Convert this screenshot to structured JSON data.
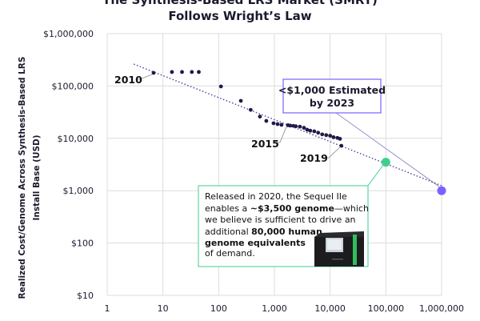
{
  "chart_data": {
    "type": "scatter",
    "title": [
      "The Synthesis-Based LRS Market (SMRT)",
      "Follows Wright’s Law"
    ],
    "xlabel": "",
    "ylabel": [
      "Realized Cost/Genome Across Synthesis-Based LRS",
      "Install Base (USD)"
    ],
    "x_scale": "log",
    "y_scale": "log",
    "xlim": [
      1,
      1000000
    ],
    "ylim": [
      10,
      1000000
    ],
    "grid": true,
    "x_ticks": [
      1,
      10,
      100,
      1000,
      10000,
      100000,
      1000000
    ],
    "x_tick_labels": [
      "1",
      "10",
      "100",
      "1,000",
      "10,000",
      "100,000",
      "1,000,000"
    ],
    "y_ticks": [
      10,
      100,
      1000,
      10000,
      100000,
      1000000
    ],
    "y_tick_labels": [
      "$10",
      "$100",
      "$1,000",
      "$10,000",
      "$100,000",
      "$1,000,000"
    ],
    "series": [
      {
        "color": "#1f1a4a",
        "points": [
          [
            6.8,
            178000
          ],
          [
            14.5,
            185000
          ],
          [
            22,
            185000
          ],
          [
            33,
            185000
          ],
          [
            44,
            185000
          ],
          [
            110,
            98000
          ],
          [
            250,
            52000
          ],
          [
            375,
            35000
          ],
          [
            550,
            26000
          ],
          [
            716,
            21500
          ],
          [
            965,
            19400
          ],
          [
            1140,
            18700
          ],
          [
            1340,
            18100
          ],
          [
            1750,
            17800
          ],
          [
            1930,
            17500
          ],
          [
            2200,
            17300
          ],
          [
            2430,
            17000
          ],
          [
            2870,
            16700
          ],
          [
            3390,
            15900
          ],
          [
            3870,
            14600
          ],
          [
            4400,
            14000
          ],
          [
            5200,
            13600
          ],
          [
            6100,
            12800
          ],
          [
            7200,
            11900
          ],
          [
            8500,
            11500
          ],
          [
            10000,
            11200
          ],
          [
            11500,
            10500
          ],
          [
            13500,
            10200
          ],
          [
            15000,
            9800
          ],
          [
            15900,
            7200
          ]
        ]
      }
    ],
    "trendline": {
      "style": "dotted",
      "color": "#4a3f9a",
      "from": [
        3,
        262000
      ],
      "to": [
        1000000,
        1245
      ]
    },
    "highlight_points": [
      {
        "x": 100000,
        "y": 3500,
        "color": "#3ecf8e"
      },
      {
        "x": 1000000,
        "y": 1000,
        "color": "#7b61ff"
      }
    ],
    "year_labels": [
      {
        "text": "2010",
        "x": 6.8,
        "y": 178000
      },
      {
        "text": "2015",
        "x": 1750,
        "y": 17800
      },
      {
        "text": "2019",
        "x": 15900,
        "y": 7200
      }
    ],
    "annotations": {
      "estimate": {
        "lines": [
          "<$1,000 Estimated",
          "by 2023"
        ],
        "border_color": "#7b61ff"
      },
      "sequel": {
        "border_color": "#3ecf8e",
        "line1": "Released in 2020, the Sequel IIe",
        "line2_pre": "enables a ",
        "line2_bold": "~$3,500 genome",
        "line2_post": "—which",
        "line3": "we believe is sufficient to drive an",
        "line4_pre": "additional ",
        "line4_bold": "80,000 human",
        "line5_bold": "genome equivalents",
        "line6": "of demand."
      }
    }
  }
}
